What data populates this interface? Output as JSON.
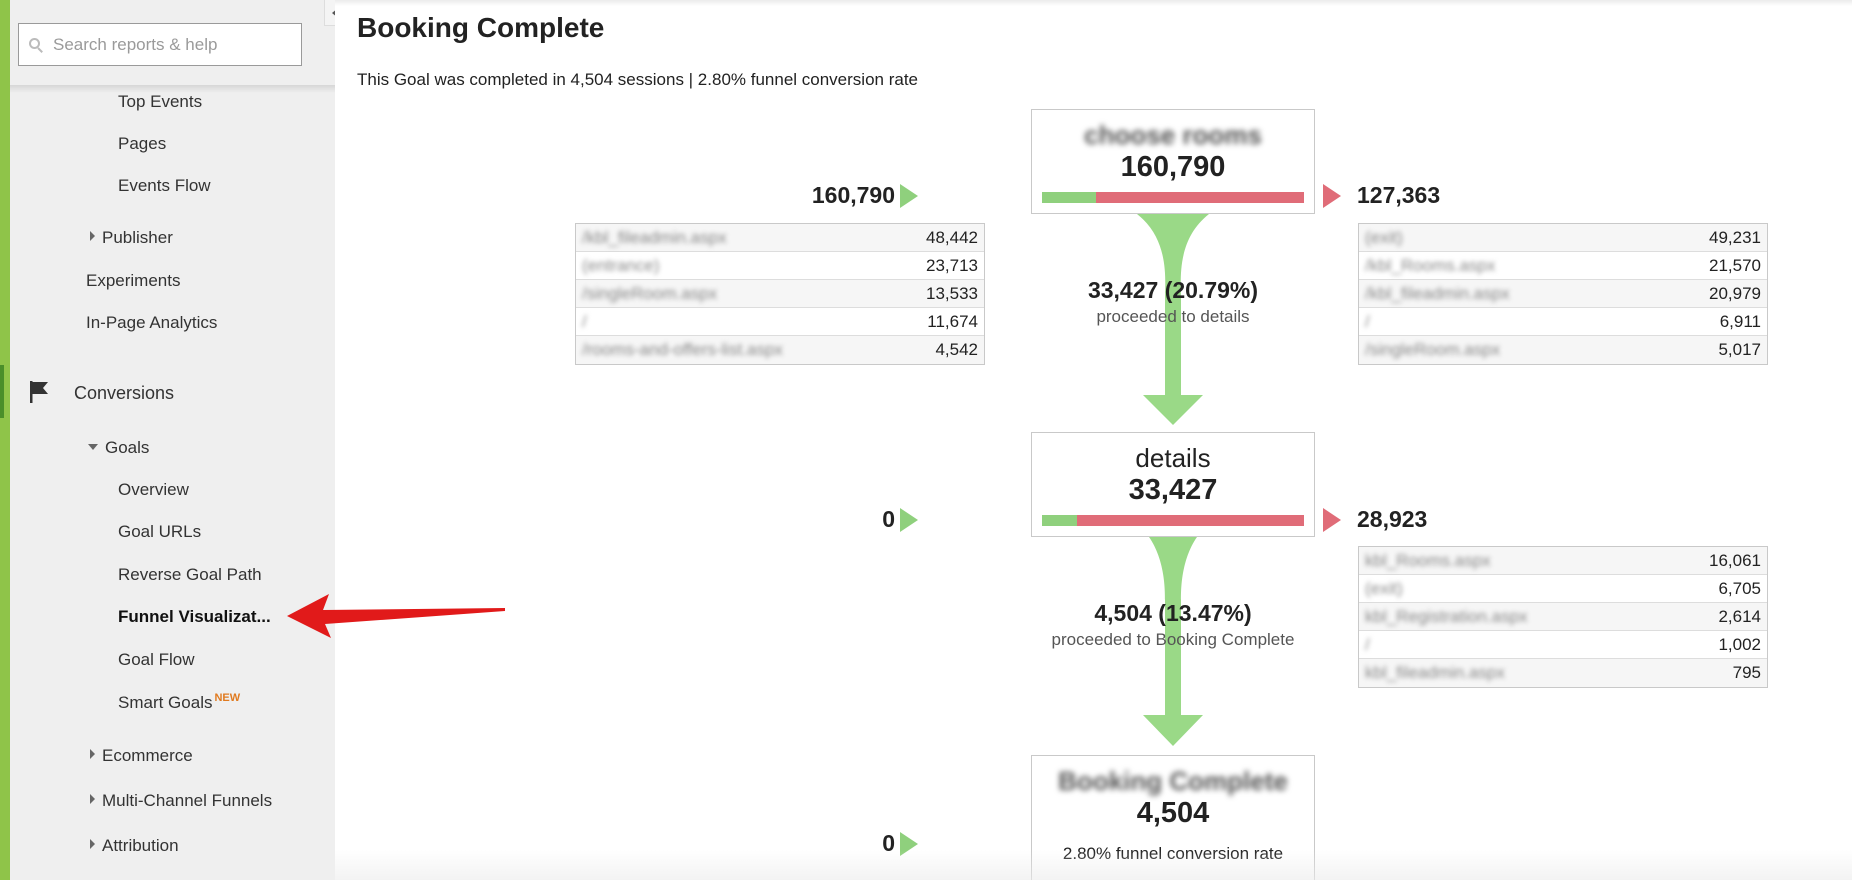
{
  "sidebar": {
    "search_placeholder": "Search reports & help",
    "items": [
      {
        "label": "Top Events"
      },
      {
        "label": "Pages"
      },
      {
        "label": "Events Flow"
      },
      {
        "label": "Publisher"
      },
      {
        "label": "Experiments"
      },
      {
        "label": "In-Page Analytics"
      },
      {
        "label": "Conversions"
      },
      {
        "label": "Goals"
      },
      {
        "label": "Overview"
      },
      {
        "label": "Goal URLs"
      },
      {
        "label": "Reverse Goal Path"
      },
      {
        "label": "Funnel Visualizat..."
      },
      {
        "label": "Goal Flow"
      },
      {
        "label": "Smart Goals"
      },
      {
        "label": "Ecommerce"
      },
      {
        "label": "Multi-Channel Funnels"
      },
      {
        "label": "Attribution"
      }
    ],
    "new_badge": "NEW",
    "active_color": "#4a8f2a"
  },
  "main": {
    "title": "Booking Complete",
    "summary": "This Goal was completed in 4,504 sessions | 2.80% funnel conversion rate",
    "steps": [
      {
        "name": "choose rooms",
        "count": "160,790",
        "entrances": "160,790",
        "exits": "127,363",
        "proceed_fraction": 0.2079,
        "entry_rows": [
          {
            "path": "/kbl_fileadmin.aspx",
            "value": "48,442"
          },
          {
            "path": "(entrance)",
            "value": "23,713"
          },
          {
            "path": "/singleRoom.aspx",
            "value": "13,533"
          },
          {
            "path": "/",
            "value": "11,674"
          },
          {
            "path": "/rooms-and-offers-list.aspx",
            "value": "4,542"
          }
        ],
        "exit_rows": [
          {
            "path": "(exit)",
            "value": "49,231"
          },
          {
            "path": "/kbl_Rooms.aspx",
            "value": "21,570"
          },
          {
            "path": "/kbl_fileadmin.aspx",
            "value": "20,979"
          },
          {
            "path": "/",
            "value": "6,911"
          },
          {
            "path": "/singleRoom.aspx",
            "value": "5,017"
          }
        ]
      },
      {
        "name": "details",
        "count": "33,427",
        "entrances": "0",
        "exits": "28,923",
        "proceed_fraction": 0.1347,
        "exit_rows": [
          {
            "path": "kbl_Rooms.aspx",
            "value": "16,061"
          },
          {
            "path": "(exit)",
            "value": "6,705"
          },
          {
            "path": "kbl_Registration.aspx",
            "value": "2,614"
          },
          {
            "path": "/",
            "value": "1,002"
          },
          {
            "path": "kbl_fileadmin.aspx",
            "value": "795"
          }
        ]
      },
      {
        "name": "Booking Complete",
        "count": "4,504",
        "entrances": "0",
        "conversion_rate": "2.80% funnel conversion rate"
      }
    ],
    "transitions": [
      {
        "value": "33,427 (20.79%)",
        "text": "proceeded to details"
      },
      {
        "value": "4,504 (13.47%)",
        "text": "proceeded to Booking Complete"
      }
    ]
  },
  "colors": {
    "proceed_green": "#8fd07d",
    "exit_red": "#e06c78",
    "annotation_arrow": "#e11a1a",
    "new_badge": "#e07a1f"
  }
}
